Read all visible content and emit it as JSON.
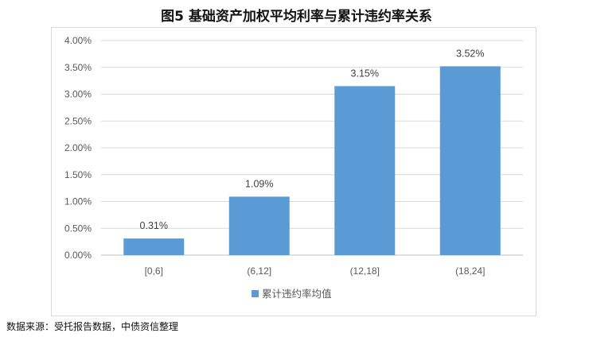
{
  "title": "图5 基础资产加权平均利率与累计违约率关系",
  "source": "数据来源：受托报告数据，中债资信整理",
  "colors": {
    "bar": "#5b9bd5",
    "grid": "#d9d9d9",
    "axis": "#bfbfbf"
  },
  "chart_data": {
    "type": "bar",
    "categories": [
      "[0,6]",
      "(6,12]",
      "(12,18]",
      "(18,24]"
    ],
    "series": [
      {
        "name": "累计违约率均值",
        "values": [
          0.31,
          1.09,
          3.15,
          3.52
        ]
      }
    ],
    "data_labels": [
      "0.31%",
      "1.09%",
      "3.15%",
      "3.52%"
    ],
    "y_ticks": [
      "0.00%",
      "0.50%",
      "1.00%",
      "1.50%",
      "2.00%",
      "2.50%",
      "3.00%",
      "3.50%",
      "4.00%"
    ],
    "ylim": [
      0,
      4
    ],
    "ylabel_unit": "%",
    "grid": true,
    "legend_position": "bottom"
  }
}
